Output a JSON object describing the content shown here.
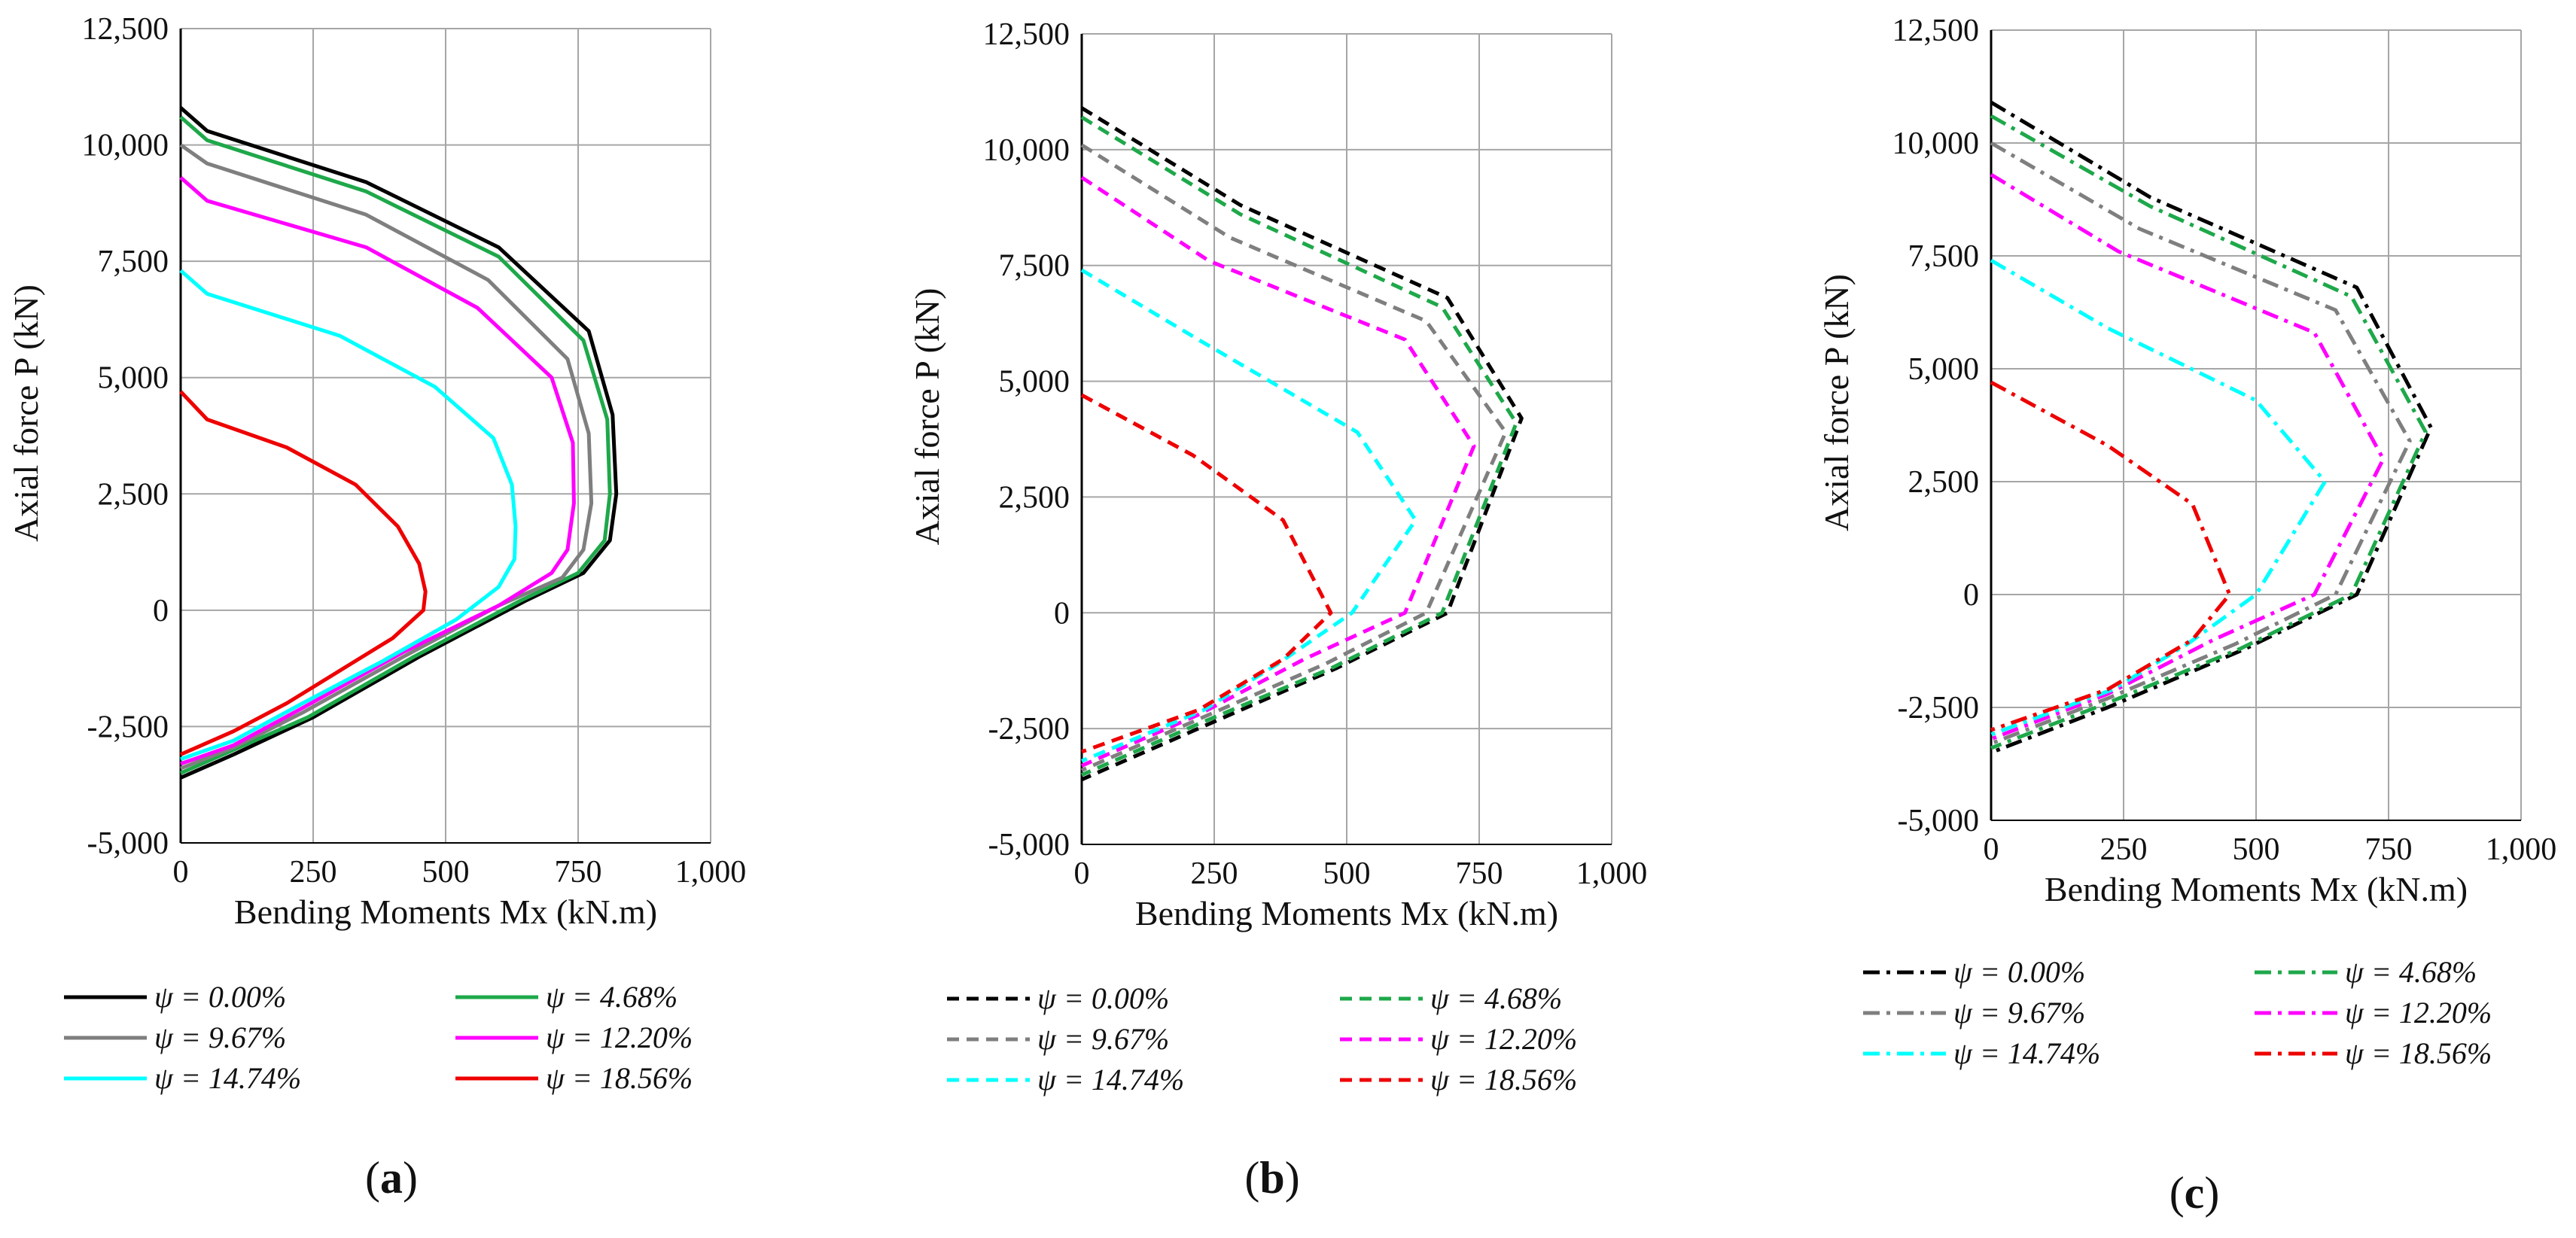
{
  "chart_data": [
    {
      "type": "line",
      "panel_label": "a",
      "line_style": "solid",
      "xlabel": "Bending Moments Mx (kN.m)",
      "ylabel": "Axial force P (kN)",
      "xlim": [
        0,
        1000
      ],
      "ylim": [
        -5000,
        12500
      ],
      "x_ticks": [
        0,
        250,
        500,
        750,
        1000
      ],
      "y_ticks": [
        -5000,
        -2500,
        0,
        2500,
        5000,
        7500,
        10000,
        12500
      ],
      "x_tick_labels": [
        "0",
        "250",
        "500",
        "750",
        "1,000"
      ],
      "y_tick_labels": [
        "-5,000",
        "-2,500",
        "0",
        "2,500",
        "5,000",
        "7,500",
        "10,000",
        "12,500"
      ],
      "grid": true,
      "legend_position": "bottom",
      "series": [
        {
          "name": "ψ = 0.00%",
          "color": "#000000",
          "x": [
            0,
            50,
            350,
            600,
            770,
            815,
            822,
            810,
            760,
            650,
            450,
            250,
            100,
            0
          ],
          "y": [
            10800,
            10300,
            9200,
            7800,
            6000,
            4200,
            2500,
            1500,
            800,
            200,
            -1000,
            -2300,
            -3100,
            -3600
          ]
        },
        {
          "name": "ψ = 4.68%",
          "color": "#1ea84a",
          "x": [
            0,
            50,
            350,
            600,
            760,
            805,
            810,
            800,
            750,
            640,
            440,
            240,
            100,
            0
          ],
          "y": [
            10600,
            10100,
            9000,
            7600,
            5800,
            4100,
            2500,
            1500,
            800,
            200,
            -1000,
            -2300,
            -3000,
            -3500
          ]
        },
        {
          "name": "ψ = 9.67%",
          "color": "#7f7f7f",
          "x": [
            0,
            50,
            350,
            580,
            730,
            770,
            775,
            760,
            720,
            600,
            420,
            230,
            100,
            0
          ],
          "y": [
            10000,
            9600,
            8500,
            7100,
            5400,
            3800,
            2300,
            1300,
            700,
            100,
            -1000,
            -2200,
            -2950,
            -3400
          ]
        },
        {
          "name": "ψ = 12.20%",
          "color": "#ff00ff",
          "x": [
            0,
            50,
            350,
            560,
            700,
            740,
            742,
            730,
            700,
            600,
            420,
            230,
            100,
            0
          ],
          "y": [
            9300,
            8800,
            7800,
            6500,
            5000,
            3600,
            2300,
            1300,
            800,
            100,
            -900,
            -2100,
            -2900,
            -3300
          ]
        },
        {
          "name": "ψ = 14.74%",
          "color": "#00ffff",
          "x": [
            0,
            50,
            300,
            480,
            590,
            625,
            632,
            630,
            600,
            520,
            380,
            230,
            100,
            0
          ],
          "y": [
            7300,
            6800,
            5900,
            4800,
            3700,
            2700,
            1800,
            1100,
            500,
            -200,
            -1100,
            -2000,
            -2800,
            -3200
          ]
        },
        {
          "name": "ψ = 18.56%",
          "color": "#ee0000",
          "x": [
            0,
            50,
            200,
            330,
            410,
            450,
            462,
            458,
            400,
            300,
            200,
            100,
            0
          ],
          "y": [
            4700,
            4100,
            3500,
            2700,
            1800,
            1000,
            400,
            0,
            -600,
            -1300,
            -2000,
            -2600,
            -3100
          ]
        }
      ]
    },
    {
      "type": "line",
      "panel_label": "b",
      "line_style": "dashed",
      "xlabel": "Bending Moments Mx (kN.m)",
      "ylabel": "Axial force P (kN)",
      "xlim": [
        0,
        1000
      ],
      "ylim": [
        -5000,
        12500
      ],
      "x_ticks": [
        0,
        250,
        500,
        750,
        1000
      ],
      "y_ticks": [
        -5000,
        -2500,
        0,
        2500,
        5000,
        7500,
        10000,
        12500
      ],
      "x_tick_labels": [
        "0",
        "250",
        "500",
        "750",
        "1,000"
      ],
      "y_tick_labels": [
        "-5,000",
        "-2,500",
        "0",
        "2,500",
        "5,000",
        "7,500",
        "10,000",
        "12,500"
      ],
      "grid": true,
      "legend_position": "bottom",
      "series": [
        {
          "name": "ψ = 0.00%",
          "color": "#000000",
          "x": [
            0,
            300,
            690,
            830,
            690,
            480,
            220,
            0
          ],
          "y": [
            10900,
            8800,
            6800,
            4200,
            0,
            -1200,
            -2500,
            -3600
          ]
        },
        {
          "name": "ψ = 4.68%",
          "color": "#1ea84a",
          "x": [
            0,
            300,
            680,
            820,
            680,
            470,
            220,
            0
          ],
          "y": [
            10700,
            8600,
            6600,
            4100,
            0,
            -1200,
            -2400,
            -3500
          ]
        },
        {
          "name": "ψ = 9.67%",
          "color": "#7f7f7f",
          "x": [
            0,
            280,
            650,
            800,
            650,
            460,
            220,
            0
          ],
          "y": [
            10100,
            8100,
            6300,
            3900,
            0,
            -1100,
            -2300,
            -3400
          ]
        },
        {
          "name": "ψ = 12.20%",
          "color": "#ff00ff",
          "x": [
            0,
            240,
            610,
            740,
            610,
            420,
            220,
            0
          ],
          "y": [
            9400,
            7600,
            5900,
            3600,
            0,
            -1000,
            -2200,
            -3300
          ]
        },
        {
          "name": "ψ = 14.74%",
          "color": "#00ffff",
          "x": [
            0,
            220,
            520,
            630,
            510,
            370,
            230,
            0
          ],
          "y": [
            7400,
            5900,
            3900,
            2000,
            0,
            -1100,
            -2100,
            -3200
          ]
        },
        {
          "name": "ψ = 18.56%",
          "color": "#ee0000",
          "x": [
            0,
            210,
            380,
            470,
            380,
            220,
            0
          ],
          "y": [
            4700,
            3400,
            2000,
            0,
            -1000,
            -2100,
            -3000
          ]
        }
      ]
    },
    {
      "type": "line",
      "panel_label": "c",
      "line_style": "dashdot",
      "xlabel": "Bending Moments Mx (kN.m)",
      "ylabel": "Axial force P (kN)",
      "xlim": [
        0,
        1000
      ],
      "ylim": [
        -5000,
        12500
      ],
      "x_ticks": [
        0,
        250,
        500,
        750,
        1000
      ],
      "y_ticks": [
        -5000,
        -2500,
        0,
        2500,
        5000,
        7500,
        10000,
        12500
      ],
      "x_tick_labels": [
        "0",
        "250",
        "500",
        "750",
        "1,000"
      ],
      "y_tick_labels": [
        "-5,000",
        "-2,500",
        "0",
        "2,500",
        "5,000",
        "7,500",
        "10,000",
        "12,500"
      ],
      "grid": true,
      "legend_position": "bottom",
      "series": [
        {
          "name": "ψ = 0.00%",
          "color": "#000000",
          "x": [
            0,
            300,
            690,
            830,
            690,
            480,
            220,
            0
          ],
          "y": [
            10900,
            8800,
            6800,
            3700,
            0,
            -1200,
            -2500,
            -3500
          ]
        },
        {
          "name": "ψ = 4.68%",
          "color": "#1ea84a",
          "x": [
            0,
            300,
            680,
            820,
            680,
            470,
            220,
            0
          ],
          "y": [
            10600,
            8600,
            6600,
            3600,
            0,
            -1200,
            -2400,
            -3400
          ]
        },
        {
          "name": "ψ = 9.67%",
          "color": "#7f7f7f",
          "x": [
            0,
            280,
            650,
            790,
            650,
            460,
            220,
            0
          ],
          "y": [
            10000,
            8100,
            6300,
            3400,
            0,
            -1100,
            -2300,
            -3300
          ]
        },
        {
          "name": "ψ = 12.20%",
          "color": "#ff00ff",
          "x": [
            0,
            240,
            610,
            740,
            610,
            420,
            220,
            0
          ],
          "y": [
            9300,
            7600,
            5800,
            3000,
            0,
            -1000,
            -2200,
            -3200
          ]
        },
        {
          "name": "ψ = 14.74%",
          "color": "#00ffff",
          "x": [
            0,
            220,
            500,
            630,
            500,
            370,
            230,
            0
          ],
          "y": [
            7400,
            5900,
            4300,
            2500,
            0,
            -1100,
            -2100,
            -3100
          ]
        },
        {
          "name": "ψ = 18.56%",
          "color": "#ee0000",
          "x": [
            0,
            220,
            380,
            450,
            380,
            220,
            0
          ],
          "y": [
            4700,
            3300,
            2000,
            0,
            -1000,
            -2100,
            -3000
          ]
        }
      ]
    }
  ]
}
